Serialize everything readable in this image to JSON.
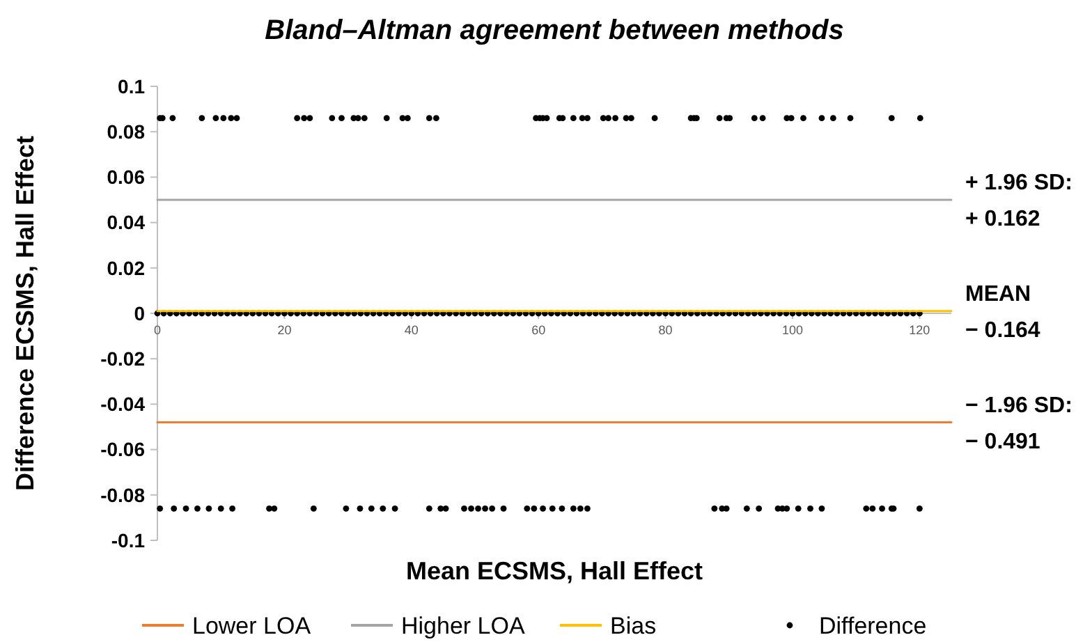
{
  "chart_data": {
    "type": "line",
    "title": "Bland–Altman agreement between methods",
    "xlabel": "Mean ECSMS, Hall Effect",
    "ylabel": "Difference ECSMS, Hall Effect",
    "xlim": [
      0,
      125
    ],
    "xticks": [
      0,
      20,
      40,
      60,
      80,
      100,
      120
    ],
    "ylim": [
      -0.1,
      0.1
    ],
    "yticks": [
      -0.1,
      -0.08,
      -0.06,
      -0.04,
      -0.02,
      0,
      0.02,
      0.04,
      0.06,
      0.08,
      0.1
    ],
    "grid": false,
    "legend": "bottom",
    "series": [
      {
        "name": "Lower LOA",
        "color": "#ed7d31",
        "marker": "none",
        "x": [
          0,
          125
        ],
        "values": [
          -0.048,
          -0.048
        ]
      },
      {
        "name": "Higher LOA",
        "color": "#a5a5a5",
        "marker": "none",
        "x": [
          0,
          125
        ],
        "values": [
          0.05,
          0.05
        ]
      },
      {
        "name": "Bias",
        "color": "#ffc000",
        "marker": "none",
        "x": [
          0,
          125
        ],
        "values": [
          0.001,
          0.001
        ]
      },
      {
        "name": "Difference",
        "type": "scatter",
        "color": "#000000",
        "marker": "circle",
        "x": [
          0,
          1,
          2,
          3,
          4,
          5,
          6,
          7,
          8,
          9,
          10,
          11,
          12,
          13,
          14,
          15,
          16,
          17,
          18,
          19,
          20,
          21,
          22,
          23,
          24,
          25,
          26,
          27,
          28,
          29,
          30,
          31,
          32,
          33,
          34,
          35,
          36,
          37,
          38,
          39,
          40,
          41,
          42,
          43,
          44,
          45,
          46,
          47,
          48,
          49,
          50,
          51,
          52,
          53,
          54,
          55,
          56,
          57,
          58,
          59,
          60,
          61,
          62,
          63,
          64,
          65,
          66,
          67,
          68,
          69,
          70,
          71,
          72,
          73,
          74,
          75,
          76,
          77,
          78,
          79,
          80,
          81,
          82,
          83,
          84,
          85,
          86,
          87,
          88,
          89,
          90,
          91,
          92,
          93,
          94,
          95,
          96,
          97,
          98,
          99,
          100,
          101,
          102,
          103,
          104,
          105,
          106,
          107,
          108,
          109,
          110,
          111,
          112,
          113,
          114,
          115,
          116,
          117,
          118,
          119,
          120,
          0.4,
          0.8,
          2.4,
          7.0,
          9.2,
          10.4,
          11.6,
          12.5,
          22.0,
          23.1,
          24.0,
          27.5,
          29.0,
          30.9,
          31.6,
          32.6,
          36.1,
          38.6,
          39.4,
          42.8,
          43.9,
          59.6,
          60.2,
          60.7,
          61.3,
          63.3,
          63.8,
          65.5,
          66.9,
          67.7,
          70.2,
          71.0,
          72.1,
          73.8,
          74.6,
          78.3,
          84.0,
          84.5,
          84.9,
          88.5,
          89.6,
          90.1,
          94.0,
          95.3,
          99.1,
          99.8,
          101.7,
          104.6,
          106.4,
          109.1,
          115.6,
          120.1,
          0.4,
          2.6,
          4.5,
          6.3,
          8.1,
          10.0,
          11.8,
          17.6,
          18.4,
          24.6,
          29.7,
          31.9,
          33.7,
          35.5,
          37.4,
          42.8,
          44.6,
          45.4,
          48.3,
          49.4,
          50.5,
          51.6,
          52.7,
          54.5,
          58.2,
          59.3,
          60.7,
          62.2,
          63.7,
          65.5,
          66.6,
          67.7,
          87.7,
          88.9,
          89.6,
          92.8,
          94.7,
          97.7,
          98.4,
          99.1,
          100.9,
          102.8,
          104.6,
          111.6,
          112.6,
          114.1,
          115.6,
          115.9,
          120.0
        ],
        "values": [
          0,
          0,
          0,
          0,
          0,
          0,
          0,
          0,
          0,
          0,
          0,
          0,
          0,
          0,
          0,
          0,
          0,
          0,
          0,
          0,
          0,
          0,
          0,
          0,
          0,
          0,
          0,
          0,
          0,
          0,
          0,
          0,
          0,
          0,
          0,
          0,
          0,
          0,
          0,
          0,
          0,
          0,
          0,
          0,
          0,
          0,
          0,
          0,
          0,
          0,
          0,
          0,
          0,
          0,
          0,
          0,
          0,
          0,
          0,
          0,
          0,
          0,
          0,
          0,
          0,
          0,
          0,
          0,
          0,
          0,
          0,
          0,
          0,
          0,
          0,
          0,
          0,
          0,
          0,
          0,
          0,
          0,
          0,
          0,
          0,
          0,
          0,
          0,
          0,
          0,
          0,
          0,
          0,
          0,
          0,
          0,
          0,
          0,
          0,
          0,
          0,
          0,
          0,
          0,
          0,
          0,
          0,
          0,
          0,
          0,
          0,
          0,
          0,
          0,
          0,
          0,
          0,
          0,
          0,
          0,
          0,
          0.086,
          0.086,
          0.086,
          0.086,
          0.086,
          0.086,
          0.086,
          0.086,
          0.086,
          0.086,
          0.086,
          0.086,
          0.086,
          0.086,
          0.086,
          0.086,
          0.086,
          0.086,
          0.086,
          0.086,
          0.086,
          0.086,
          0.086,
          0.086,
          0.086,
          0.086,
          0.086,
          0.086,
          0.086,
          0.086,
          0.086,
          0.086,
          0.086,
          0.086,
          0.086,
          0.086,
          0.086,
          0.086,
          0.086,
          0.086,
          0.086,
          0.086,
          0.086,
          0.086,
          0.086,
          0.086,
          0.086,
          0.086,
          0.086,
          0.086,
          0.086,
          0.086,
          -0.086,
          -0.086,
          -0.086,
          -0.086,
          -0.086,
          -0.086,
          -0.086,
          -0.086,
          -0.086,
          -0.086,
          -0.086,
          -0.086,
          -0.086,
          -0.086,
          -0.086,
          -0.086,
          -0.086,
          -0.086,
          -0.086,
          -0.086,
          -0.086,
          -0.086,
          -0.086,
          -0.086,
          -0.086,
          -0.086,
          -0.086,
          -0.086,
          -0.086,
          -0.086,
          -0.086,
          -0.086,
          -0.086,
          -0.086,
          -0.086,
          -0.086,
          -0.086,
          -0.086,
          -0.086,
          -0.086,
          -0.086,
          -0.086,
          -0.086,
          -0.086,
          -0.086,
          -0.086,
          -0.086,
          -0.086,
          -0.086
        ]
      }
    ],
    "annotations": [
      "− 1.96 SD:\n− 0.491",
      "+ 1.96 SD:\n+ 0.162",
      "MEAN\n− 0.164"
    ]
  }
}
